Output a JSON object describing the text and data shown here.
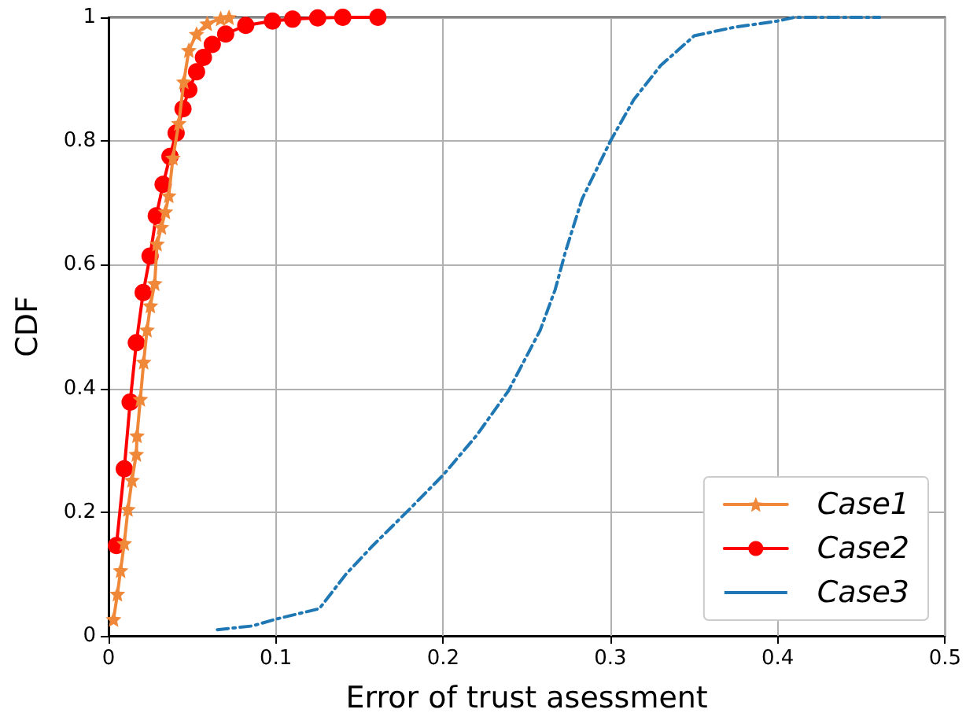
{
  "chart_data": {
    "type": "line",
    "xlabel": "Error of trust asessment",
    "ylabel": "CDF",
    "xlim": [
      0,
      0.5
    ],
    "xticks": [
      0,
      0.1,
      0.2,
      0.3,
      0.4,
      0.5
    ],
    "ylim": [
      0,
      1
    ],
    "yticks": [
      0,
      0.2,
      0.4,
      0.6,
      0.8,
      1
    ],
    "grid": true,
    "legend": "bottom right",
    "series": [
      {
        "name": "Case1",
        "color": "#f0883a",
        "marker": "star",
        "line_style": "solid",
        "x": [
          0.003,
          0.0053,
          0.0072,
          0.0094,
          0.0116,
          0.014,
          0.0166,
          0.017,
          0.019,
          0.021,
          0.023,
          0.025,
          0.0276,
          0.029,
          0.0316,
          0.034,
          0.036,
          0.0385,
          0.042,
          0.045,
          0.048,
          0.0526,
          0.059,
          0.067,
          0.072
        ],
        "values": [
          0.027,
          0.068,
          0.106,
          0.15,
          0.205,
          0.252,
          0.294,
          0.324,
          0.383,
          0.443,
          0.495,
          0.534,
          0.57,
          0.634,
          0.661,
          0.686,
          0.712,
          0.773,
          0.829,
          0.896,
          0.947,
          0.973,
          0.99,
          0.998,
          1.0
        ]
      },
      {
        "name": "Case2",
        "color": "#ff0000",
        "marker": "circle",
        "line_style": "solid",
        "x": [
          0.0047,
          0.0094,
          0.0129,
          0.0166,
          0.0207,
          0.0248,
          0.0285,
          0.0326,
          0.0367,
          0.0404,
          0.0445,
          0.048,
          0.0526,
          0.0567,
          0.062,
          0.07,
          0.082,
          0.098,
          0.11,
          0.125,
          0.14,
          0.161
        ],
        "values": [
          0.146,
          0.27,
          0.378,
          0.474,
          0.555,
          0.614,
          0.679,
          0.73,
          0.775,
          0.813,
          0.852,
          0.883,
          0.912,
          0.935,
          0.956,
          0.973,
          0.987,
          0.994,
          0.997,
          0.999,
          1.0,
          1.0
        ]
      },
      {
        "name": "Case3",
        "color": "#1f77b4",
        "marker": "none",
        "line_style": "dashdot",
        "x": [
          0.065,
          0.086,
          0.1,
          0.126,
          0.142,
          0.158,
          0.18,
          0.2,
          0.22,
          0.239,
          0.258,
          0.267,
          0.273,
          0.283,
          0.3,
          0.314,
          0.33,
          0.35,
          0.374,
          0.4,
          0.41,
          0.461
        ],
        "values": [
          0.01,
          0.016,
          0.027,
          0.044,
          0.1,
          0.146,
          0.205,
          0.26,
          0.324,
          0.396,
          0.494,
          0.56,
          0.62,
          0.706,
          0.8,
          0.867,
          0.922,
          0.97,
          0.984,
          0.994,
          1.0,
          1.0
        ]
      }
    ]
  }
}
